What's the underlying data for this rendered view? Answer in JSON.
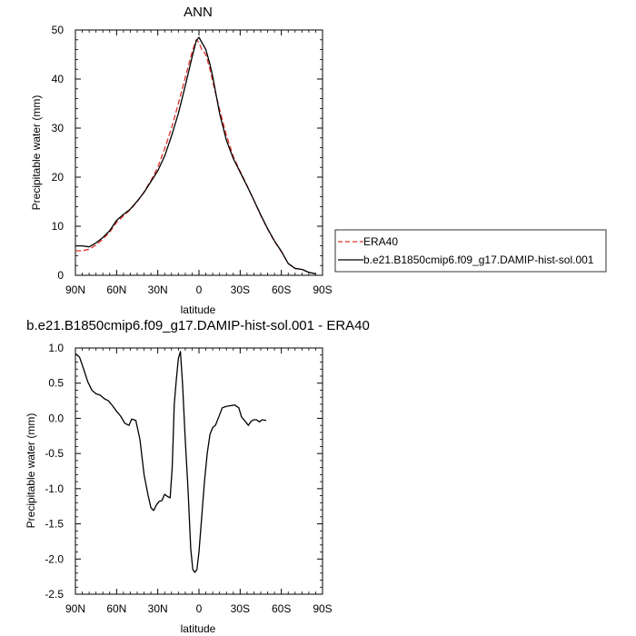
{
  "chart_data": [
    {
      "type": "line",
      "title": "ANN",
      "xlabel": "latitude",
      "ylabel": "Precipitable water (mm)",
      "xlim": [
        90,
        -90
      ],
      "ylim": [
        0,
        50
      ],
      "xticks": [
        90,
        60,
        30,
        0,
        -30,
        -60,
        -90
      ],
      "xtick_labels": [
        "90N",
        "60N",
        "30N",
        "0",
        "30S",
        "60S",
        "90S"
      ],
      "yticks": [
        0,
        10,
        20,
        30,
        40,
        50
      ],
      "ytick_labels": [
        "0",
        "10",
        "20",
        "30",
        "40",
        "50"
      ],
      "grid": false,
      "legend": {
        "placement": "right",
        "entries": [
          "ERA40",
          "b.e21.B1850cmip6.f09_g17.DAMIP-hist-sol.001"
        ]
      },
      "series": [
        {
          "name": "ERA40",
          "color": "#e0302b",
          "dash": "dashed",
          "points": [
            [
              90,
              5.0
            ],
            [
              85,
              5.0
            ],
            [
              80,
              5.3
            ],
            [
              75,
              6.2
            ],
            [
              70,
              7.4
            ],
            [
              65,
              8.8
            ],
            [
              60,
              10.8
            ],
            [
              55,
              12.1
            ],
            [
              50,
              13.4
            ],
            [
              45,
              15.0
            ],
            [
              40,
              17.0
            ],
            [
              35,
              19.3
            ],
            [
              30,
              22.0
            ],
            [
              25,
              25.8
            ],
            [
              20,
              30.0
            ],
            [
              15,
              35.0
            ],
            [
              10,
              40.3
            ],
            [
              5,
              45.5
            ],
            [
              2,
              48.0
            ],
            [
              0,
              47.5
            ],
            [
              -2,
              46.0
            ],
            [
              -5,
              45.0
            ],
            [
              -8,
              42.0
            ],
            [
              -10,
              39.5
            ],
            [
              -15,
              33.8
            ],
            [
              -20,
              28.5
            ],
            [
              -25,
              24.2
            ],
            [
              -30,
              21.2
            ],
            [
              -35,
              18.3
            ],
            [
              -40,
              15.3
            ],
            [
              -45,
              12.2
            ],
            [
              -50,
              9.4
            ],
            [
              -55,
              6.9
            ],
            [
              -60,
              4.8
            ],
            [
              -65,
              2.4
            ],
            [
              -70,
              1.4
            ],
            [
              -75,
              1.2
            ],
            [
              -80,
              0.6
            ],
            [
              -85,
              0.3
            ]
          ]
        },
        {
          "name": "b.e21.B1850cmip6.f09_g17.DAMIP-hist-sol.001",
          "color": "#000000",
          "dash": "solid",
          "points": [
            [
              90,
              6.0
            ],
            [
              85,
              6.0
            ],
            [
              80,
              5.8
            ],
            [
              75,
              6.6
            ],
            [
              70,
              7.7
            ],
            [
              65,
              9.1
            ],
            [
              60,
              11.2
            ],
            [
              55,
              12.4
            ],
            [
              50,
              13.5
            ],
            [
              45,
              15.1
            ],
            [
              40,
              16.9
            ],
            [
              35,
              19.1
            ],
            [
              30,
              21.3
            ],
            [
              25,
              24.3
            ],
            [
              20,
              28.4
            ],
            [
              15,
              33.0
            ],
            [
              10,
              38.6
            ],
            [
              5,
              44.5
            ],
            [
              2,
              47.8
            ],
            [
              0,
              48.5
            ],
            [
              -2,
              47.5
            ],
            [
              -5,
              46.0
            ],
            [
              -8,
              43.0
            ],
            [
              -10,
              40.5
            ],
            [
              -15,
              33.0
            ],
            [
              -20,
              27.5
            ],
            [
              -25,
              23.8
            ],
            [
              -30,
              21.0
            ],
            [
              -35,
              18.2
            ],
            [
              -40,
              15.3
            ],
            [
              -45,
              12.3
            ],
            [
              -50,
              9.5
            ],
            [
              -55,
              7.0
            ],
            [
              -60,
              4.9
            ],
            [
              -65,
              2.4
            ],
            [
              -70,
              1.4
            ],
            [
              -75,
              1.2
            ],
            [
              -80,
              0.6
            ],
            [
              -85,
              0.3
            ]
          ]
        }
      ]
    },
    {
      "type": "line",
      "title": "b.e21.B1850cmip6.f09_g17.DAMIP-hist-sol.001 - ERA40",
      "xlabel": "latitude",
      "ylabel": "Precipitable water (mm)",
      "xlim": [
        90,
        -90
      ],
      "ylim": [
        -2.5,
        1.0
      ],
      "xticks": [
        90,
        60,
        30,
        0,
        -30,
        -60,
        -90
      ],
      "xtick_labels": [
        "90N",
        "60N",
        "30N",
        "0",
        "30S",
        "60S",
        "90S"
      ],
      "yticks": [
        1.0,
        0.5,
        0.0,
        -0.5,
        -1.0,
        -1.5,
        -2.0,
        -2.5
      ],
      "ytick_labels": [
        "1.0",
        "0.5",
        "0.0",
        "-0.5",
        "-1.0",
        "-1.5",
        "-2.0",
        "-2.5"
      ],
      "grid": false,
      "series": [
        {
          "color": "#000000",
          "dash": "solid",
          "points": [
            [
              90,
              0.92
            ],
            [
              87,
              0.87
            ],
            [
              84,
              0.7
            ],
            [
              81,
              0.52
            ],
            [
              78,
              0.4
            ],
            [
              75,
              0.35
            ],
            [
              72,
              0.33
            ],
            [
              69,
              0.28
            ],
            [
              66,
              0.25
            ],
            [
              63,
              0.18
            ],
            [
              60,
              0.1
            ],
            [
              57,
              0.03
            ],
            [
              54,
              -0.07
            ],
            [
              51,
              -0.1
            ],
            [
              49,
              -0.01
            ],
            [
              46,
              -0.03
            ],
            [
              43,
              -0.3
            ],
            [
              40,
              -0.8
            ],
            [
              37,
              -1.1
            ],
            [
              35,
              -1.27
            ],
            [
              33,
              -1.31
            ],
            [
              31,
              -1.23
            ],
            [
              29,
              -1.18
            ],
            [
              27,
              -1.17
            ],
            [
              25,
              -1.08
            ],
            [
              23,
              -1.11
            ],
            [
              21,
              -1.13
            ],
            [
              19.5,
              -0.7
            ],
            [
              18,
              0.2
            ],
            [
              16.5,
              0.55
            ],
            [
              15,
              0.85
            ],
            [
              13.5,
              0.95
            ],
            [
              12,
              0.5
            ],
            [
              10,
              -0.3
            ],
            [
              8,
              -1.0
            ],
            [
              6,
              -1.85
            ],
            [
              4.5,
              -2.15
            ],
            [
              3,
              -2.19
            ],
            [
              1.5,
              -2.15
            ],
            [
              0,
              -1.9
            ],
            [
              -2,
              -1.4
            ],
            [
              -4,
              -0.9
            ],
            [
              -6,
              -0.5
            ],
            [
              -8,
              -0.23
            ],
            [
              -10,
              -0.13
            ],
            [
              -12,
              -0.1
            ],
            [
              -14,
              0.0
            ],
            [
              -17,
              0.15
            ],
            [
              -20,
              0.17
            ],
            [
              -23,
              0.18
            ],
            [
              -26,
              0.19
            ],
            [
              -29,
              0.15
            ],
            [
              -31,
              0.02
            ],
            [
              -34,
              -0.05
            ],
            [
              -36,
              -0.1
            ],
            [
              -38,
              -0.04
            ],
            [
              -40,
              -0.02
            ],
            [
              -42,
              -0.02
            ],
            [
              -44,
              -0.05
            ],
            [
              -46,
              -0.02
            ],
            [
              -49,
              -0.03
            ]
          ]
        }
      ]
    }
  ]
}
